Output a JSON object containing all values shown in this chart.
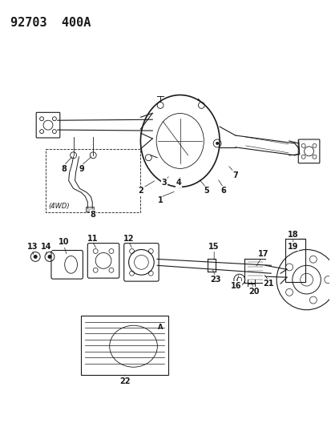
{
  "title": "92703  400A",
  "bg_color": "#ffffff",
  "line_color": "#1a1a1a",
  "title_fontsize": 11,
  "label_fontsize": 7,
  "fig_width": 4.14,
  "fig_height": 5.33,
  "dpi": 100
}
